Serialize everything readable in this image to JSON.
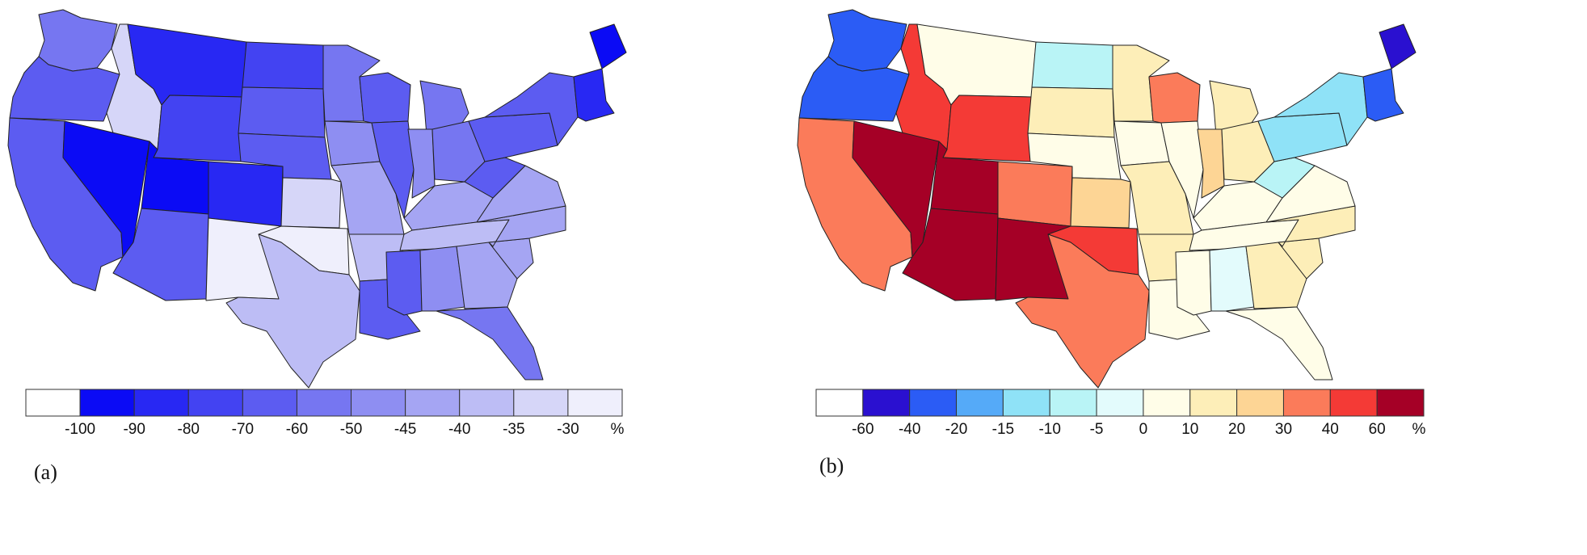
{
  "panels": [
    {
      "label": "(a)",
      "legend": {
        "ticks": [
          "-100",
          "-90",
          "-80",
          "-70",
          "-60",
          "-50",
          "-45",
          "-40",
          "-35",
          "-30"
        ],
        "unit": "%",
        "colors": [
          "#ffffff",
          "#0b0bf5",
          "#2828f3",
          "#4343f2",
          "#5c5cf1",
          "#7676f1",
          "#8e8ef2",
          "#a5a5f3",
          "#bdbdf5",
          "#d6d6f8",
          "#efeffc"
        ]
      },
      "states": {
        "WA": 5,
        "OR": 4,
        "CA": 4,
        "ID": 9,
        "NV": 1,
        "UT": 1,
        "AZ": 4,
        "MT": 2,
        "WY": 3,
        "CO": 2,
        "NM": 10,
        "ND": 3,
        "SD": 4,
        "NE": 4,
        "KS": 9,
        "OK": 10,
        "TX": 8,
        "MN": 5,
        "IA": 6,
        "MO": 7,
        "AR": 8,
        "LA": 4,
        "WI": 4,
        "IL": 4,
        "MI": 5,
        "IN": 6,
        "OH": 5,
        "KY": 7,
        "TN": 8,
        "MS": 4,
        "AL": 6,
        "GA": 7,
        "FL": 5,
        "SC": 7,
        "NC": 7,
        "VA": 7,
        "WV": 4,
        "PA": 4,
        "NY": 4,
        "ME": 1,
        "NE6": 2
      }
    },
    {
      "label": "(b)",
      "legend": {
        "ticks": [
          "-60",
          "-40",
          "-20",
          "-15",
          "-10",
          "-5",
          "0",
          "10",
          "20",
          "30",
          "40",
          "60"
        ],
        "unit": "%",
        "colors": [
          "#ffffff",
          "#2a10d0",
          "#2b5cf5",
          "#55aaf8",
          "#8fe2f7",
          "#b9f4f6",
          "#e3fbfc",
          "#fffde8",
          "#fdeeb8",
          "#fdd595",
          "#fb7b5a",
          "#f43a36",
          "#a50026"
        ]
      },
      "states": {
        "WA": 2,
        "OR": 2,
        "CA": 10,
        "ID": 11,
        "NV": 12,
        "UT": 12,
        "AZ": 12,
        "MT": 7,
        "WY": 11,
        "CO": 10,
        "NM": 12,
        "ND": 5,
        "SD": 8,
        "NE": 7,
        "KS": 9,
        "OK": 11,
        "TX": 10,
        "MN": 8,
        "IA": 7,
        "MO": 8,
        "AR": 8,
        "LA": 7,
        "WI": 10,
        "IL": 7,
        "MI": 8,
        "IN": 9,
        "OH": 8,
        "KY": 7,
        "TN": 7,
        "MS": 7,
        "AL": 6,
        "GA": 8,
        "FL": 7,
        "SC": 8,
        "NC": 8,
        "VA": 7,
        "WV": 5,
        "PA": 4,
        "NY": 4,
        "ME": 1,
        "NE6": 2
      }
    }
  ]
}
